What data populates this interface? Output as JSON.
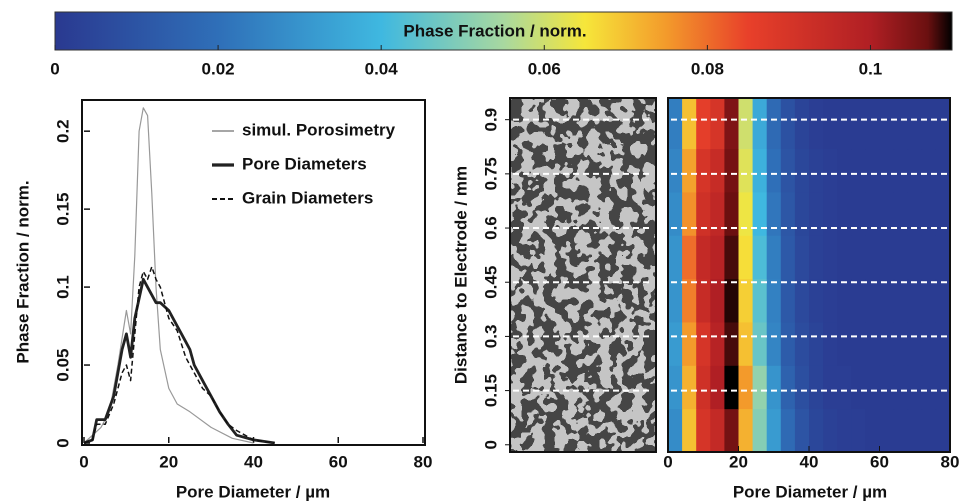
{
  "chart_data": [
    {
      "type": "colorbar",
      "label": "Phase Fraction / norm.",
      "xlim": [
        0,
        0.11
      ],
      "xticks": [
        0,
        0.02,
        0.04,
        0.06,
        0.08,
        0.1
      ],
      "colormap": [
        {
          "value": 0,
          "color": "#2a3990"
        },
        {
          "value": 0.02,
          "color": "#2f6fb8"
        },
        {
          "value": 0.04,
          "color": "#3fb8e0"
        },
        {
          "value": 0.055,
          "color": "#a8d8a0"
        },
        {
          "value": 0.065,
          "color": "#f6e63a"
        },
        {
          "value": 0.075,
          "color": "#f39a2b"
        },
        {
          "value": 0.085,
          "color": "#e8402a"
        },
        {
          "value": 0.1,
          "color": "#b01f24"
        },
        {
          "value": 0.107,
          "color": "#6b1010"
        },
        {
          "value": 0.11,
          "color": "#000000"
        }
      ]
    },
    {
      "type": "line",
      "xlabel": "Pore Diameter / µm",
      "ylabel": "Phase Fraction / norm.",
      "xlim": [
        0,
        80
      ],
      "xticks": [
        0,
        20,
        40,
        60,
        80
      ],
      "ylim": [
        0,
        0.22
      ],
      "yticks": [
        0,
        0.05,
        0.1,
        0.15,
        0.2
      ],
      "series": [
        {
          "name": "simul. Porosimetry",
          "color": "#999999",
          "width": 1.2,
          "dash": "none",
          "x": [
            0,
            2,
            4,
            6,
            8,
            10,
            11,
            12,
            13,
            14,
            15,
            16,
            17,
            18,
            20,
            22,
            25,
            30,
            35,
            40
          ],
          "values": [
            0,
            0.005,
            0.01,
            0.02,
            0.05,
            0.085,
            0.07,
            0.12,
            0.2,
            0.215,
            0.21,
            0.16,
            0.1,
            0.06,
            0.035,
            0.025,
            0.02,
            0.01,
            0.003,
            0
          ]
        },
        {
          "name": "Pore Diameters",
          "color": "#222222",
          "width": 2.8,
          "dash": "none",
          "x": [
            0,
            2,
            3,
            5,
            7,
            9,
            10,
            11,
            12,
            14,
            16,
            17,
            18,
            20,
            22,
            23,
            24,
            25,
            26,
            28,
            30,
            32,
            34,
            36,
            40,
            45
          ],
          "values": [
            0,
            0.002,
            0.015,
            0.015,
            0.03,
            0.06,
            0.07,
            0.055,
            0.08,
            0.105,
            0.095,
            0.09,
            0.09,
            0.085,
            0.075,
            0.07,
            0.065,
            0.06,
            0.05,
            0.04,
            0.03,
            0.02,
            0.012,
            0.005,
            0.002,
            0
          ]
        },
        {
          "name": "Grain Diameters",
          "color": "#111111",
          "width": 1.5,
          "dash": "5,3",
          "x": [
            0,
            2,
            3,
            5,
            7,
            9,
            10,
            11,
            12,
            13,
            14,
            15,
            16,
            17,
            18,
            20,
            22,
            24,
            26,
            28,
            30,
            32,
            34,
            36,
            40,
            45
          ],
          "values": [
            0,
            0.002,
            0.012,
            0.012,
            0.025,
            0.045,
            0.05,
            0.04,
            0.07,
            0.1,
            0.11,
            0.105,
            0.113,
            0.105,
            0.1,
            0.08,
            0.072,
            0.055,
            0.045,
            0.035,
            0.03,
            0.02,
            0.012,
            0.008,
            0.002,
            0
          ]
        }
      ]
    },
    {
      "type": "image",
      "ylabel": "Distance to Electrode / mm",
      "ylim": [
        -0.02,
        0.96
      ],
      "yticks": [
        0,
        0.15,
        0.3,
        0.45,
        0.6,
        0.75,
        0.9
      ]
    },
    {
      "type": "heatmap",
      "xlabel": "Pore Diameter / µm",
      "xlim": [
        0,
        80
      ],
      "xticks": [
        0,
        20,
        40,
        60,
        80
      ],
      "ylim": [
        -0.02,
        0.96
      ],
      "bins": [
        0,
        4,
        8,
        12,
        16,
        20,
        24,
        28,
        32,
        36,
        40,
        44,
        48,
        52,
        56,
        60,
        64,
        68,
        72,
        76,
        80
      ],
      "y_bins": [
        -0.02,
        0.1,
        0.22,
        0.34,
        0.46,
        0.58,
        0.7,
        0.82,
        0.96
      ],
      "reference_lines": [
        0.15,
        0.3,
        0.45,
        0.6,
        0.75,
        0.9
      ],
      "z": [
        [
          0.028,
          0.07,
          0.09,
          0.095,
          0.106,
          0.072,
          0.05,
          0.032,
          0.018,
          0.01,
          0.005,
          0.003,
          0.002,
          0.002,
          0.001,
          0.001,
          0.001,
          0.001,
          0.001,
          0.001
        ],
        [
          0.03,
          0.072,
          0.092,
          0.1,
          0.11,
          0.075,
          0.052,
          0.03,
          0.015,
          0.008,
          0.004,
          0.002,
          0.002,
          0.001,
          0.001,
          0.001,
          0.001,
          0.001,
          0.001,
          0.001
        ],
        [
          0.032,
          0.075,
          0.09,
          0.098,
          0.108,
          0.07,
          0.046,
          0.026,
          0.013,
          0.007,
          0.004,
          0.002,
          0.001,
          0.001,
          0.001,
          0.001,
          0.001,
          0.001,
          0.001,
          0.001
        ],
        [
          0.03,
          0.078,
          0.094,
          0.1,
          0.109,
          0.068,
          0.044,
          0.025,
          0.012,
          0.006,
          0.003,
          0.002,
          0.001,
          0.001,
          0.001,
          0.001,
          0.001,
          0.001,
          0.001,
          0.001
        ],
        [
          0.03,
          0.08,
          0.095,
          0.098,
          0.108,
          0.066,
          0.042,
          0.024,
          0.012,
          0.006,
          0.003,
          0.002,
          0.001,
          0.001,
          0.001,
          0.001,
          0.001,
          0.001,
          0.001,
          0.001
        ],
        [
          0.028,
          0.076,
          0.092,
          0.096,
          0.107,
          0.064,
          0.04,
          0.022,
          0.011,
          0.005,
          0.003,
          0.002,
          0.001,
          0.001,
          0.001,
          0.001,
          0.001,
          0.001,
          0.001,
          0.001
        ],
        [
          0.026,
          0.074,
          0.09,
          0.094,
          0.106,
          0.062,
          0.038,
          0.02,
          0.01,
          0.005,
          0.003,
          0.002,
          0.001,
          0.001,
          0.001,
          0.001,
          0.001,
          0.001,
          0.001,
          0.001
        ],
        [
          0.024,
          0.07,
          0.086,
          0.09,
          0.105,
          0.06,
          0.036,
          0.018,
          0.009,
          0.004,
          0.002,
          0.001,
          0.001,
          0.001,
          0.001,
          0.001,
          0.001,
          0.001,
          0.001,
          0.001
        ]
      ]
    }
  ]
}
